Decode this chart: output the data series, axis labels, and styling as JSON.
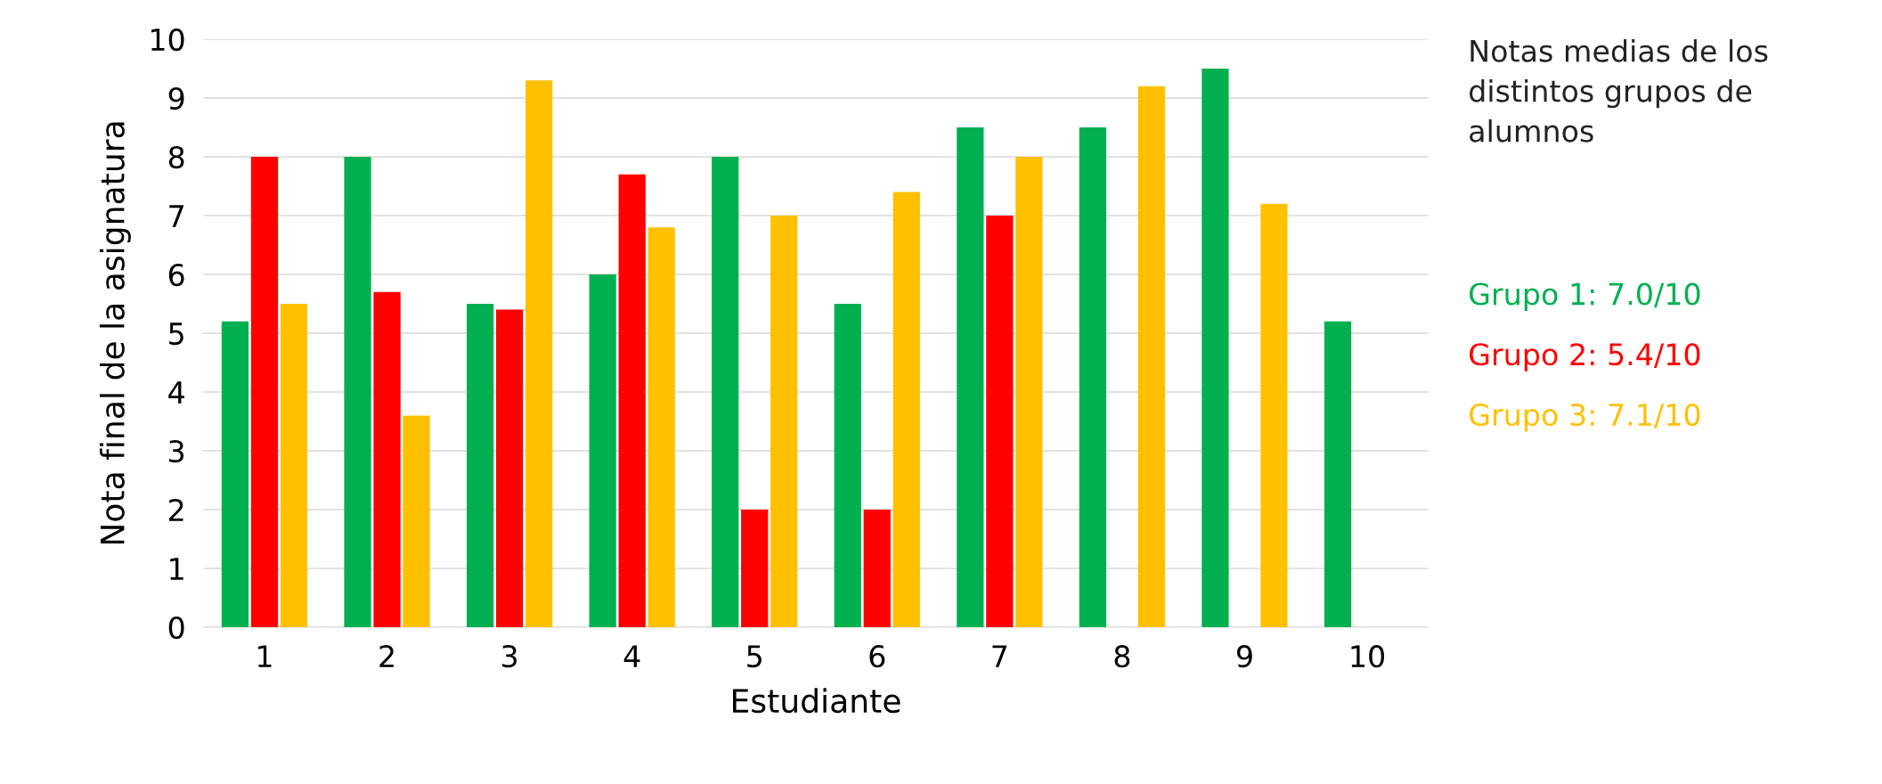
{
  "chart_data": {
    "type": "bar",
    "xlabel": "Estudiante",
    "ylabel": "Nota final de la asignatura",
    "categories": [
      "1",
      "2",
      "3",
      "4",
      "5",
      "6",
      "7",
      "8",
      "9",
      "10"
    ],
    "series": [
      {
        "color": "#00b050",
        "values": [
          5.2,
          8,
          5.5,
          6,
          8,
          5.5,
          8.5,
          8.5,
          9.5,
          5.2
        ]
      },
      {
        "color": "#ff0000",
        "values": [
          8,
          5.7,
          5.4,
          7.7,
          2,
          2,
          7,
          null,
          null,
          null
        ]
      },
      {
        "color": "#ffc000",
        "values": [
          5.5,
          3.6,
          9.3,
          6.8,
          7,
          7.4,
          8,
          9.2,
          7.2,
          null
        ]
      }
    ],
    "ylim": [
      0,
      10
    ],
    "yticks": [
      0,
      1,
      2,
      3,
      4,
      5,
      6,
      7,
      8,
      9,
      10
    ],
    "grid": "y",
    "legend": false,
    "annotations": [
      "Notas medias de los distintos grupos de alumnos",
      "Grupo 1: 7.0/10",
      "Grupo 2: 5.4/10",
      "Grupo 3: 7.1/10"
    ]
  }
}
